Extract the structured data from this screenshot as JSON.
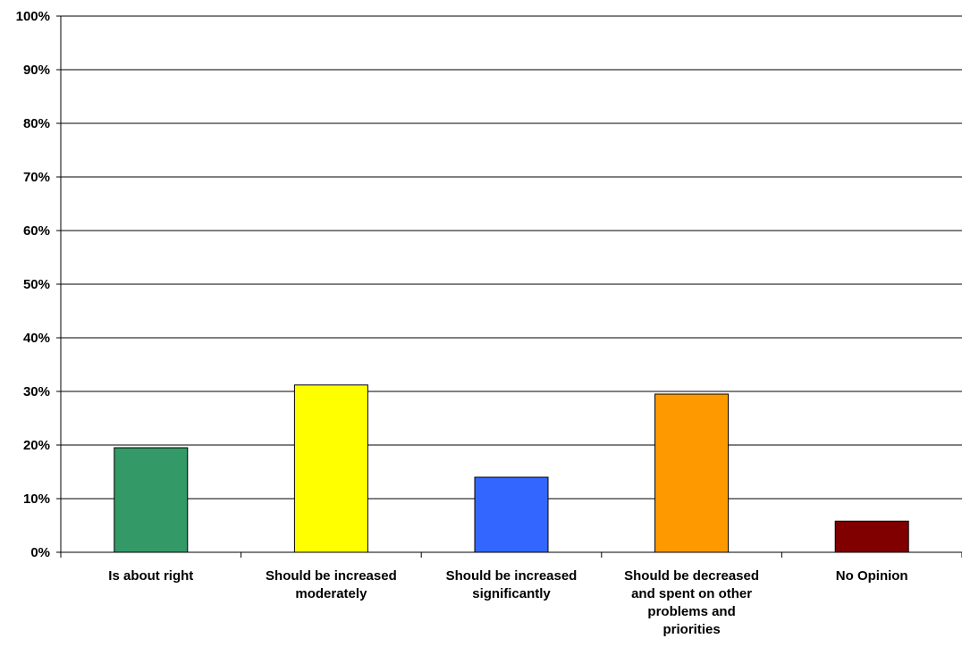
{
  "chart_data": {
    "type": "bar",
    "categories": [
      [
        "Is about right"
      ],
      [
        "Should be increased",
        "moderately"
      ],
      [
        "Should be increased",
        "significantly"
      ],
      [
        "Should be decreased",
        "and spent on other",
        "problems and",
        "priorities"
      ],
      [
        "No Opinion"
      ]
    ],
    "values": [
      19.5,
      31.2,
      14.0,
      29.5,
      5.8
    ],
    "colors": [
      "#339966",
      "#ffff00",
      "#3366ff",
      "#ff9900",
      "#800000"
    ],
    "ylim": [
      0,
      100
    ],
    "yticks": [
      0,
      10,
      20,
      30,
      40,
      50,
      60,
      70,
      80,
      90,
      100
    ],
    "ytick_suffix": "%",
    "grid": true,
    "title": "",
    "xlabel": "",
    "ylabel": ""
  }
}
